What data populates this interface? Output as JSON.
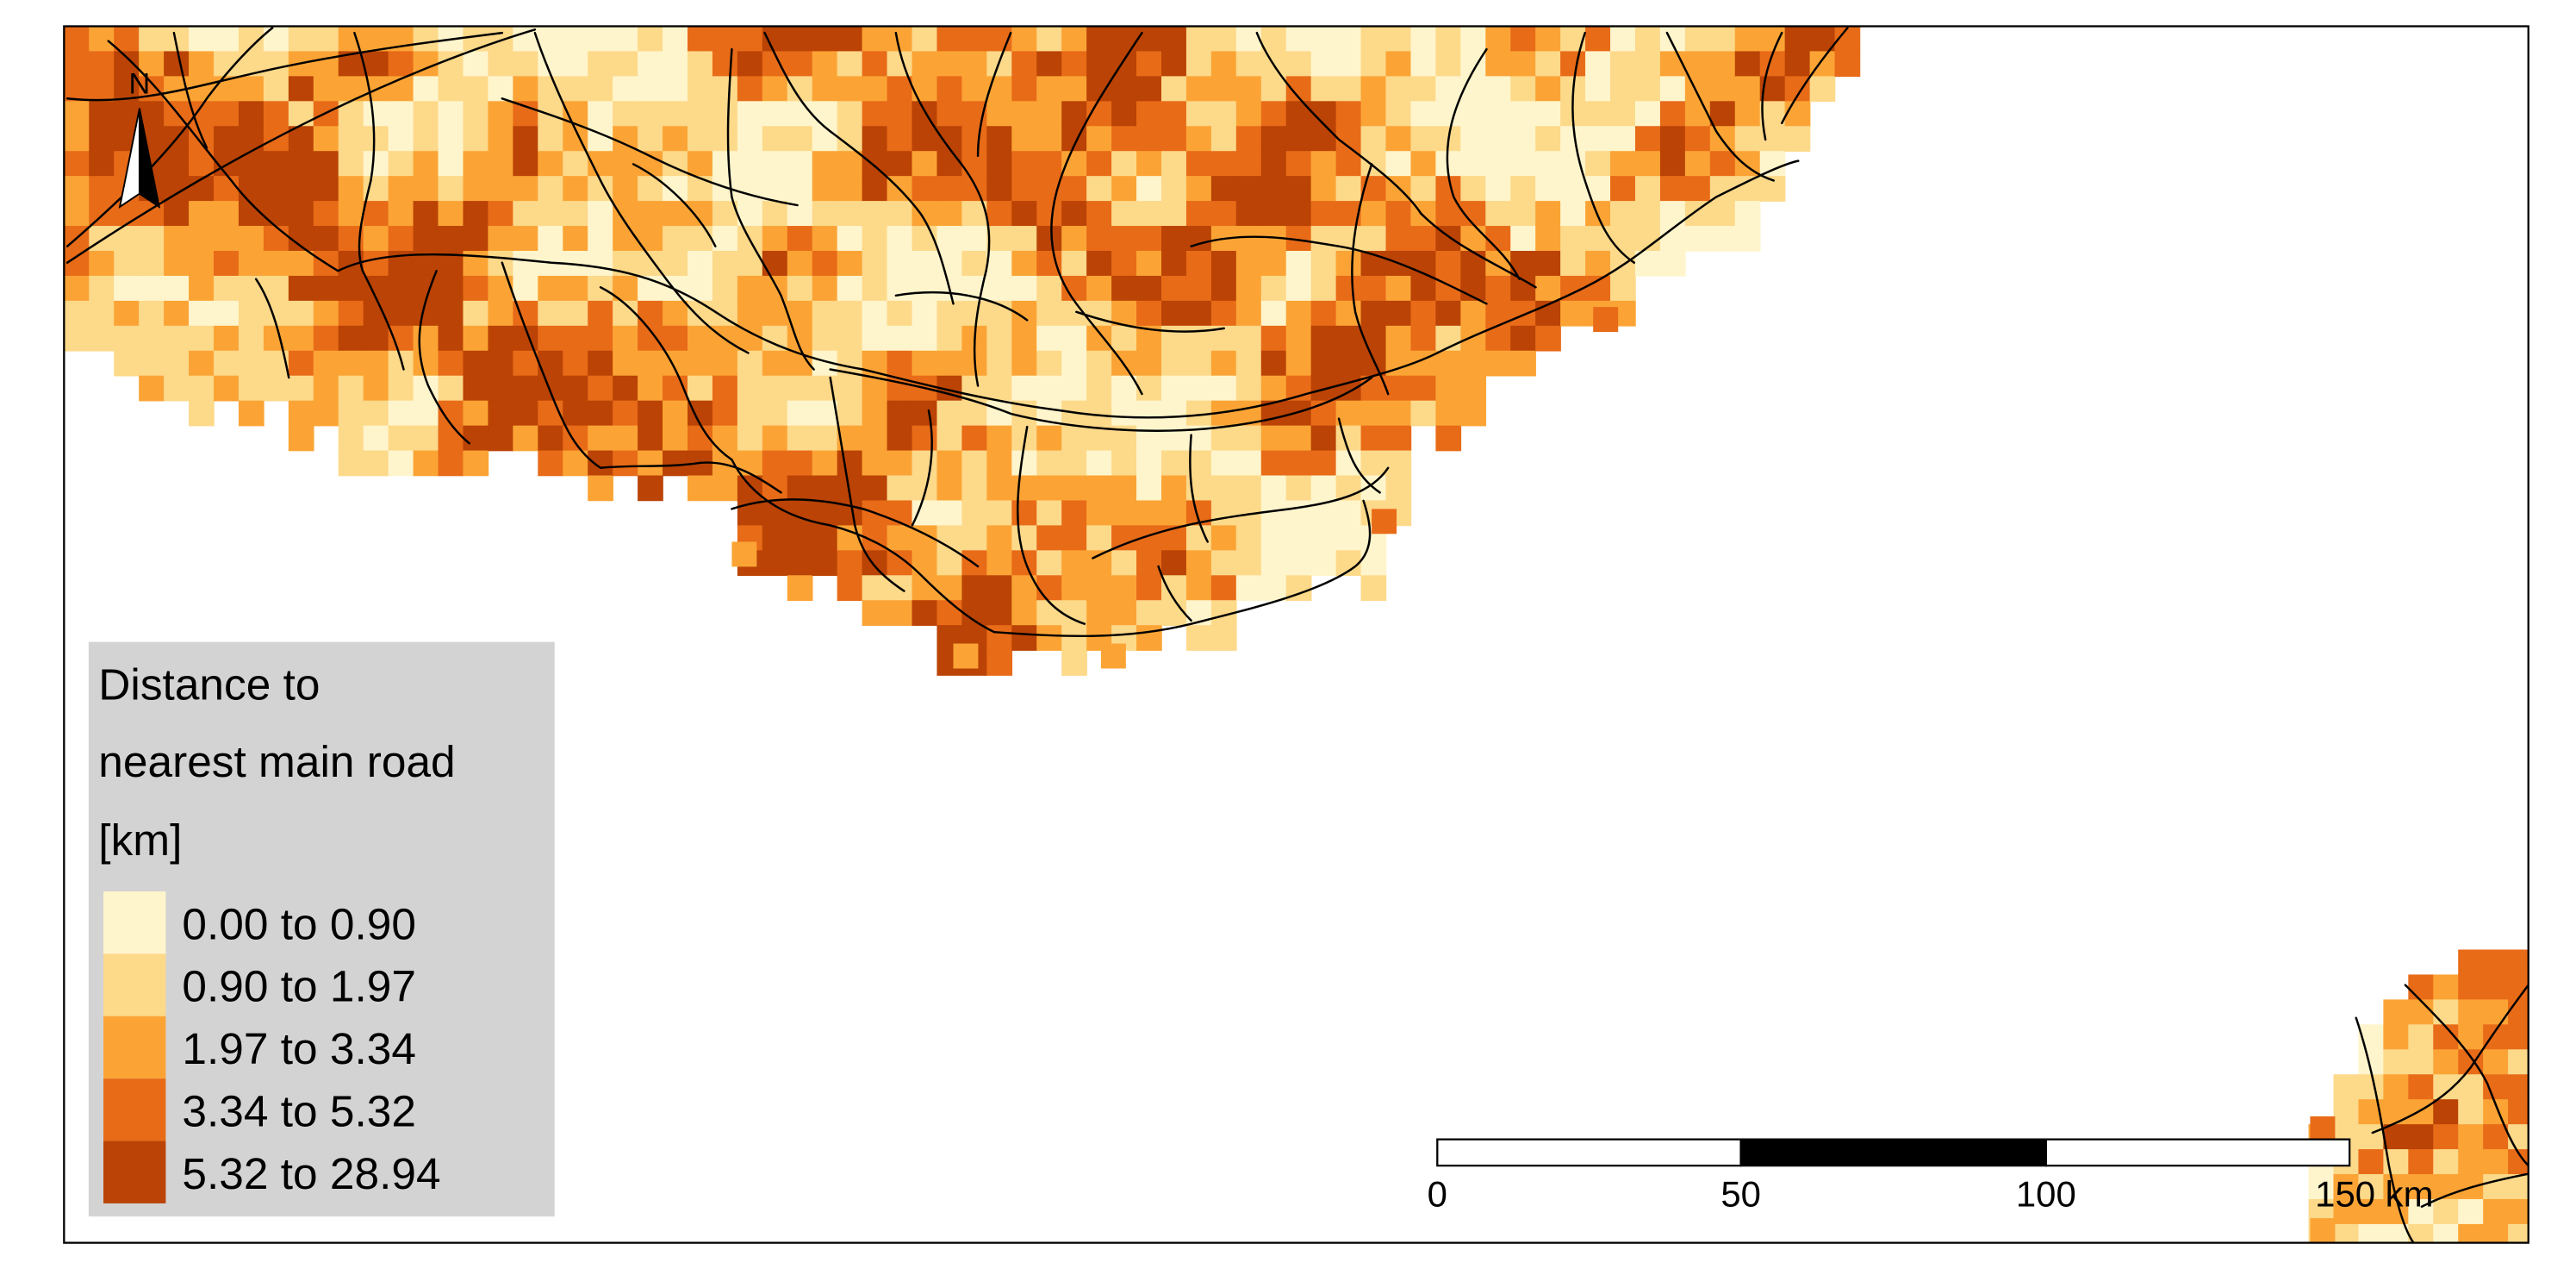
{
  "north_arrow": {
    "letter": "N"
  },
  "legend": {
    "title_lines": [
      "Distance to",
      "nearest main road",
      "[km]"
    ],
    "classes": [
      {
        "label": "0.00 to 0.90",
        "color": "#FFF5CC"
      },
      {
        "label": "0.90 to 1.97",
        "color": "#FDD98A"
      },
      {
        "label": "1.97 to 3.34",
        "color": "#FBA435"
      },
      {
        "label": "3.34 to 5.32",
        "color": "#E86B18"
      },
      {
        "label": "5.32 to 28.94",
        "color": "#BA4305"
      }
    ],
    "background_color": "#D3D3D3"
  },
  "scale_bar": {
    "tick_labels": [
      "0",
      "50",
      "100",
      "150 km"
    ]
  },
  "colors": {
    "road": "#000000",
    "frame": "#000000"
  }
}
